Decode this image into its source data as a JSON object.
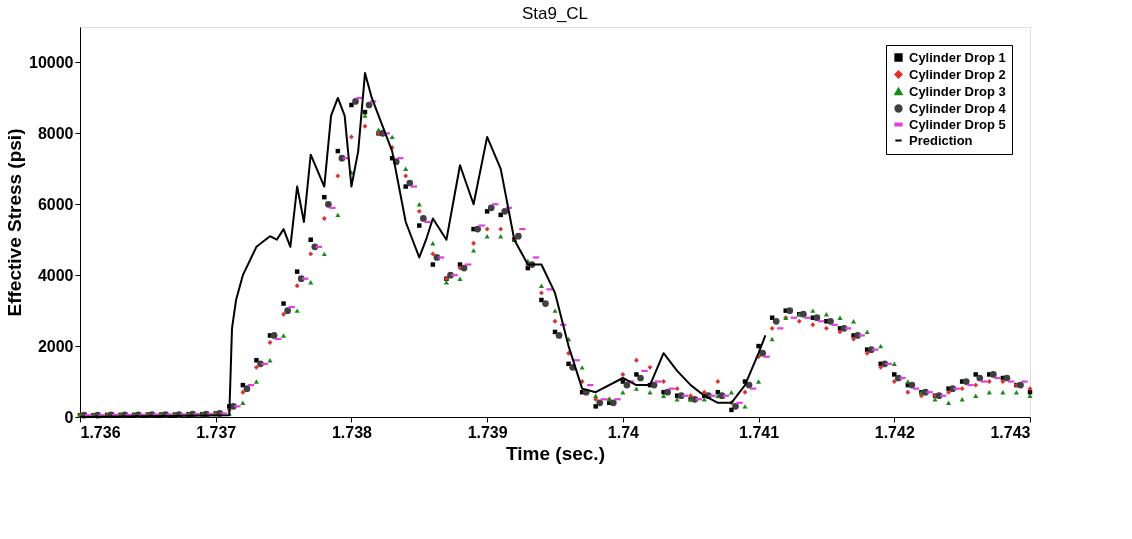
{
  "chart_data": {
    "type": "scatter",
    "title": "Sta9_CL",
    "xlabel": "Time (sec.)",
    "ylabel": "Effective Stress (psi)",
    "xlim": [
      1.736,
      1.743
    ],
    "xticks": [
      {
        "value": 1.736,
        "label": "1.736"
      },
      {
        "value": 1.737,
        "label": "1.737"
      },
      {
        "value": 1.738,
        "label": "1.738"
      },
      {
        "value": 1.739,
        "label": "1.739"
      },
      {
        "value": 1.74,
        "label": "1.74"
      },
      {
        "value": 1.741,
        "label": "1.741"
      },
      {
        "value": 1.742,
        "label": "1.742"
      },
      {
        "value": 1.743,
        "label": "1.743"
      }
    ],
    "ylim": [
      0,
      11000
    ],
    "yticks": [
      {
        "value": 0,
        "label": "0"
      },
      {
        "value": 2000,
        "label": "2000"
      },
      {
        "value": 4000,
        "label": "4000"
      },
      {
        "value": 6000,
        "label": "6000"
      },
      {
        "value": 8000,
        "label": "8000"
      },
      {
        "value": 10000,
        "label": "10000"
      }
    ],
    "grid": false,
    "legend": "top right",
    "x": [
      1.736,
      1.7361,
      1.7362,
      1.7363,
      1.7364,
      1.7365,
      1.7366,
      1.7367,
      1.7368,
      1.7369,
      1.737,
      1.7371,
      1.7372,
      1.7373,
      1.7374,
      1.7375,
      1.7376,
      1.7377,
      1.7378,
      1.7379,
      1.738,
      1.7381,
      1.7382,
      1.7383,
      1.7384,
      1.7385,
      1.7386,
      1.7387,
      1.7388,
      1.7389,
      1.739,
      1.7391,
      1.7392,
      1.7393,
      1.7394,
      1.7395,
      1.7396,
      1.7397,
      1.7398,
      1.7399,
      1.74,
      1.7401,
      1.7402,
      1.7403,
      1.7404,
      1.7405,
      1.7406,
      1.7407,
      1.7408,
      1.7409,
      1.741,
      1.7411,
      1.7412,
      1.7413,
      1.7414,
      1.7415,
      1.7416,
      1.7417,
      1.7418,
      1.7419,
      1.742,
      1.7421,
      1.7422,
      1.7423,
      1.7424,
      1.7425,
      1.7426,
      1.7427,
      1.7428,
      1.7429,
      1.743
    ],
    "series": [
      {
        "name": "Cylinder Drop 1",
        "color": "#000000",
        "marker": "square",
        "values": [
          50,
          50,
          60,
          60,
          60,
          70,
          70,
          70,
          80,
          80,
          100,
          300,
          900,
          1600,
          2300,
          3200,
          4100,
          5000,
          6200,
          7500,
          8800,
          8600,
          8000,
          7300,
          6500,
          5400,
          4300,
          3900,
          4300,
          5300,
          5800,
          5700,
          5000,
          4200,
          3300,
          2400,
          1500,
          700,
          300,
          400,
          1000,
          1200,
          900,
          700,
          600,
          500,
          600,
          700,
          200,
          1000,
          2000,
          2800,
          3000,
          2900,
          2800,
          2700,
          2500,
          2300,
          1900,
          1500,
          1200,
          900,
          700,
          600,
          800,
          1000,
          1200,
          1200,
          1100,
          900,
          700
        ]
      },
      {
        "name": "Cylinder Drop 2",
        "color": "#e03030",
        "marker": "diamond",
        "values": [
          50,
          50,
          60,
          60,
          60,
          70,
          70,
          70,
          80,
          80,
          100,
          200,
          700,
          1400,
          2100,
          2900,
          3700,
          4600,
          5600,
          6800,
          7900,
          8200,
          8000,
          7600,
          6800,
          5800,
          4600,
          3900,
          4200,
          4900,
          5300,
          5300,
          5000,
          4300,
          3500,
          2700,
          1800,
          1000,
          500,
          500,
          1200,
          1600,
          1400,
          1000,
          800,
          600,
          700,
          1000,
          400,
          700,
          1700,
          2500,
          2800,
          2700,
          2600,
          2500,
          2400,
          2200,
          1800,
          1400,
          1000,
          700,
          600,
          600,
          700,
          800,
          900,
          1000,
          1000,
          900,
          800
        ]
      },
      {
        "name": "Cylinder Drop 3",
        "color": "#1a8a1a",
        "marker": "triangle",
        "values": [
          50,
          50,
          50,
          60,
          60,
          60,
          70,
          70,
          70,
          80,
          80,
          100,
          400,
          1000,
          1600,
          2300,
          3000,
          3800,
          4600,
          5700,
          6900,
          8500,
          8100,
          7900,
          7000,
          6000,
          4900,
          3800,
          3900,
          4700,
          5100,
          5100,
          5000,
          4400,
          3700,
          3000,
          2200,
          1400,
          600,
          500,
          700,
          800,
          700,
          600,
          500,
          500,
          500,
          600,
          700,
          300,
          1000,
          2200,
          2800,
          2900,
          3000,
          2900,
          2800,
          2700,
          2400,
          2000,
          1500,
          1000,
          700,
          500,
          400,
          500,
          600,
          700,
          700,
          700,
          600
        ]
      },
      {
        "name": "Cylinder Drop 4",
        "color": "#404040",
        "marker": "circle",
        "x": [
          1.73603,
          1.73613,
          1.73623,
          1.73633,
          1.73643,
          1.73653,
          1.73663,
          1.73673,
          1.73683,
          1.73693,
          1.73703,
          1.73713,
          1.73723,
          1.73733,
          1.73743,
          1.73753,
          1.73763,
          1.73773,
          1.73783,
          1.73793,
          1.73803,
          1.73813,
          1.73823,
          1.73833,
          1.73843,
          1.73853,
          1.73863,
          1.73873,
          1.73883,
          1.73893,
          1.73903,
          1.73913,
          1.73923,
          1.73933,
          1.73943,
          1.73953,
          1.73963,
          1.73973,
          1.73983,
          1.73993,
          1.74003,
          1.74013,
          1.74023,
          1.74033,
          1.74043,
          1.74053,
          1.74063,
          1.74073,
          1.74083,
          1.74093,
          1.74103,
          1.74113,
          1.74123,
          1.74133,
          1.74143,
          1.74153,
          1.74163,
          1.74173,
          1.74183,
          1.74193,
          1.74203,
          1.74213,
          1.74223,
          1.74233,
          1.74243,
          1.74253,
          1.74263,
          1.74273,
          1.74283,
          1.74293
        ],
        "values": [
          50,
          50,
          60,
          60,
          60,
          70,
          70,
          70,
          80,
          80,
          100,
          300,
          800,
          1500,
          2300,
          3000,
          3900,
          4800,
          6000,
          7300,
          8900,
          8800,
          8000,
          7200,
          6600,
          5600,
          4500,
          4000,
          4200,
          5300,
          5900,
          5800,
          5100,
          4300,
          3200,
          2300,
          1400,
          700,
          400,
          400,
          900,
          1100,
          900,
          700,
          600,
          500,
          600,
          600,
          300,
          900,
          1800,
          2700,
          3000,
          2900,
          2800,
          2700,
          2500,
          2300,
          1900,
          1500,
          1100,
          900,
          700,
          600,
          800,
          1000,
          1100,
          1200,
          1100,
          900
        ]
      },
      {
        "name": "Cylinder Drop 5",
        "color": "#e040e0",
        "x": [
          1.73606,
          1.73616,
          1.73626,
          1.73636,
          1.73646,
          1.73656,
          1.73666,
          1.73676,
          1.73686,
          1.73696,
          1.73706,
          1.73716,
          1.73726,
          1.73736,
          1.73746,
          1.73756,
          1.73766,
          1.73776,
          1.73786,
          1.73796,
          1.73806,
          1.73816,
          1.73826,
          1.73836,
          1.73846,
          1.73856,
          1.73866,
          1.73876,
          1.73886,
          1.73896,
          1.73906,
          1.73916,
          1.73926,
          1.73936,
          1.73946,
          1.73956,
          1.73966,
          1.73976,
          1.73986,
          1.73996,
          1.74006,
          1.74016,
          1.74026,
          1.74036,
          1.74046,
          1.74056,
          1.74066,
          1.74076,
          1.74086,
          1.74096,
          1.74106,
          1.74116,
          1.74126,
          1.74136,
          1.74146,
          1.74156,
          1.74166,
          1.74176,
          1.74186,
          1.74196,
          1.74206,
          1.74216,
          1.74226,
          1.74236,
          1.74246,
          1.74256,
          1.74266,
          1.74276,
          1.74286,
          1.74296
        ],
        "values": [
          50,
          50,
          60,
          60,
          60,
          70,
          70,
          70,
          80,
          80,
          100,
          300,
          900,
          1500,
          2200,
          3100,
          3900,
          4800,
          5900,
          7300,
          9000,
          8900,
          8000,
          7300,
          6500,
          5500,
          4500,
          4000,
          4300,
          5400,
          6000,
          5900,
          5300,
          4500,
          3600,
          2600,
          1600,
          900,
          500,
          500,
          1000,
          1300,
          1000,
          800,
          600,
          500,
          600,
          600,
          400,
          800,
          1700,
          2500,
          2800,
          2800,
          2700,
          2600,
          2500,
          2300,
          1900,
          1500,
          1100,
          800,
          700,
          600,
          800,
          900,
          1000,
          1100,
          1000,
          1000
        ]
      },
      {
        "name": "Prediction",
        "color": "#000000",
        "type": "line",
        "marker": "none",
        "x": [
          1.736,
          1.7371,
          1.73712,
          1.73715,
          1.7372,
          1.7373,
          1.7374,
          1.73745,
          1.7375,
          1.73755,
          1.7376,
          1.73765,
          1.7377,
          1.7378,
          1.73785,
          1.7379,
          1.73795,
          1.738,
          1.73805,
          1.7381,
          1.73815,
          1.7382,
          1.7383,
          1.7384,
          1.7385,
          1.73855,
          1.7386,
          1.7387,
          1.7388,
          1.7389,
          1.739,
          1.7391,
          1.7392,
          1.7393,
          1.7394,
          1.7395,
          1.7396,
          1.7397,
          1.7398,
          1.74,
          1.7401,
          1.7402,
          1.7403,
          1.7404,
          1.7405,
          1.7406,
          1.7407,
          1.7408,
          1.7409,
          1.741,
          1.74105
        ],
        "values": [
          0,
          50,
          2500,
          3300,
          4000,
          4800,
          5100,
          5000,
          5300,
          4800,
          6500,
          5500,
          7400,
          6500,
          8500,
          9000,
          8500,
          6500,
          7500,
          9700,
          9000,
          8500,
          7500,
          5500,
          4500,
          5000,
          5600,
          5000,
          7100,
          6000,
          7900,
          7000,
          5000,
          4300,
          4300,
          3500,
          2000,
          800,
          700,
          1100,
          900,
          900,
          1800,
          1300,
          900,
          600,
          400,
          400,
          900,
          1800,
          2300
        ]
      }
    ]
  }
}
